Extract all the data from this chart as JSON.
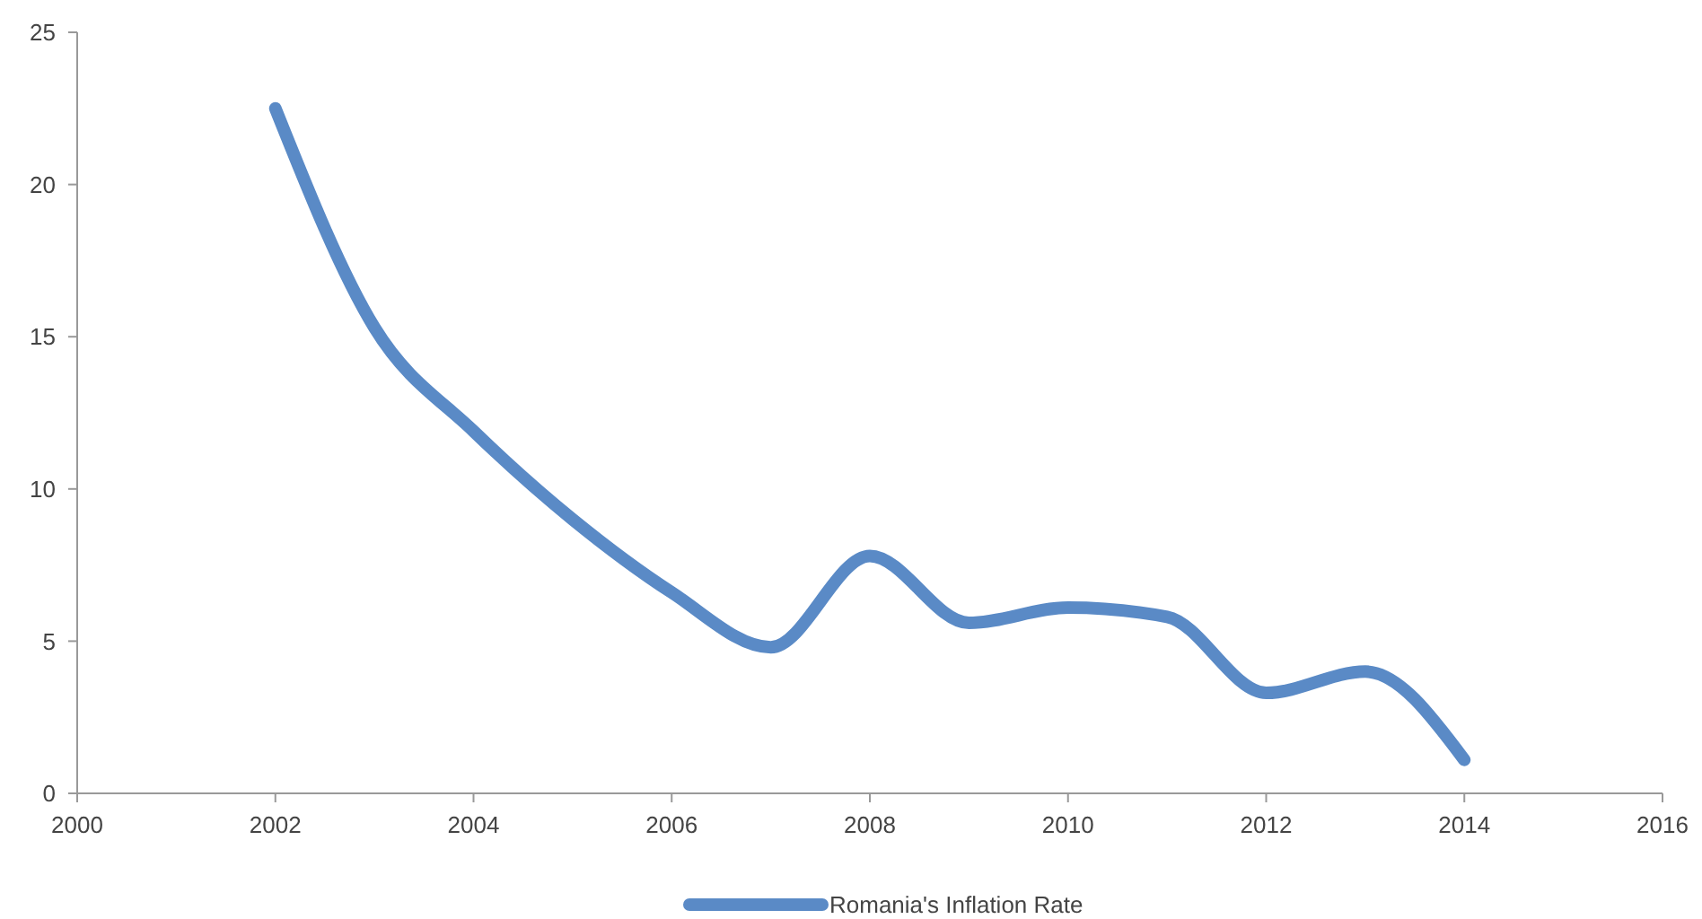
{
  "chart_data": {
    "type": "line",
    "x": [
      2002,
      2003,
      2004,
      2005,
      2006,
      2007,
      2008,
      2009,
      2010,
      2011,
      2012,
      2013,
      2014
    ],
    "series": [
      {
        "name": "Romania's Inflation Rate",
        "color": "#5a8ac6",
        "values": [
          22.5,
          15.3,
          11.9,
          9.0,
          6.6,
          4.8,
          7.8,
          5.6,
          6.1,
          5.8,
          3.3,
          4.0,
          1.1
        ]
      }
    ],
    "xlim": [
      2000,
      2016
    ],
    "xticks": [
      2000,
      2002,
      2004,
      2006,
      2008,
      2010,
      2012,
      2014,
      2016
    ],
    "ylim": [
      0,
      25
    ],
    "yticks": [
      0,
      5,
      10,
      15,
      20,
      25
    ],
    "grid": false,
    "legend": "bottom",
    "marker": "none",
    "line_style": "solid"
  }
}
